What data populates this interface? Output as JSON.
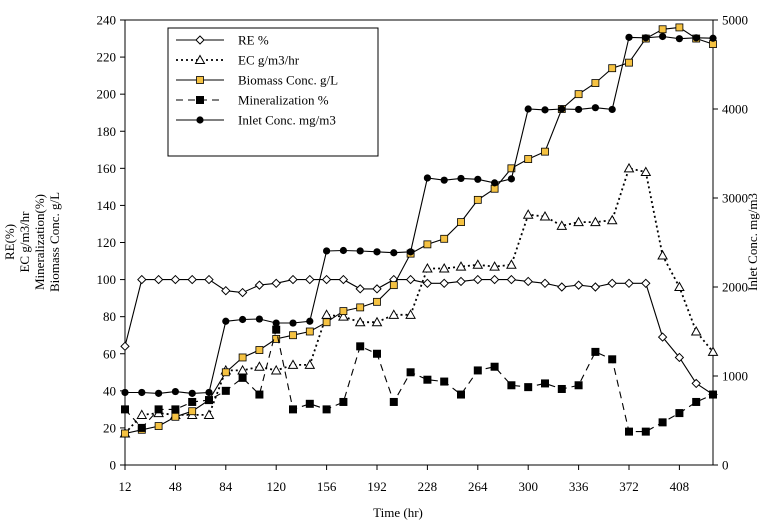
{
  "chart_data": {
    "type": "line",
    "title": "",
    "xlabel": "Time  (hr)",
    "ylabel_left": [
      "RE(%)",
      "EC g/m3/hr",
      "Mineralization(%)",
      "Biomass Conc. g/L"
    ],
    "ylabel_right": "Inlet Conc. mg/m3",
    "xlim": [
      12,
      432
    ],
    "ylim_left": [
      0,
      240
    ],
    "ylim_right": [
      0,
      5000
    ],
    "x_ticks": [
      "12",
      "48",
      "84",
      "120",
      "156",
      "192",
      "228",
      "264",
      "300",
      "336",
      "372",
      "408"
    ],
    "x_tick_values": [
      12,
      48,
      84,
      120,
      156,
      192,
      228,
      264,
      300,
      336,
      372,
      408
    ],
    "y_left_ticks": [
      "0",
      "20",
      "40",
      "60",
      "80",
      "100",
      "120",
      "140",
      "160",
      "180",
      "200",
      "220",
      "240"
    ],
    "y_left_tick_values": [
      0,
      20,
      40,
      60,
      80,
      100,
      120,
      140,
      160,
      180,
      200,
      220,
      240
    ],
    "y_right_ticks": [
      "0",
      "1000",
      "2000",
      "3000",
      "4000",
      "5000"
    ],
    "y_right_tick_values": [
      0,
      1000,
      2000,
      3000,
      4000,
      5000
    ],
    "grid": false,
    "legend_position": "top-left",
    "series": [
      {
        "name": "RE %",
        "axis": "left",
        "color": "#000000",
        "line_style": "solid",
        "marker": "diamond-open",
        "x": [
          12,
          24,
          36,
          48,
          60,
          72,
          84,
          96,
          108,
          120,
          132,
          144,
          156,
          168,
          180,
          192,
          204,
          216,
          228,
          240,
          252,
          264,
          276,
          288,
          300,
          312,
          324,
          336,
          348,
          360,
          372,
          384,
          396,
          408,
          420,
          432
        ],
        "y": [
          64,
          100,
          100,
          100,
          100,
          100,
          94,
          93,
          97,
          98,
          100,
          100,
          100,
          100,
          95,
          95,
          100,
          100,
          98,
          98,
          99,
          100,
          100,
          100,
          99,
          98,
          96,
          97,
          96,
          98,
          98,
          98,
          69,
          58,
          44,
          38
        ]
      },
      {
        "name": "EC g/m3/hr",
        "axis": "left",
        "color": "#000000",
        "line_style": "dotted",
        "marker": "triangle-open",
        "x": [
          12,
          24,
          36,
          48,
          60,
          72,
          84,
          96,
          108,
          120,
          132,
          144,
          156,
          168,
          180,
          192,
          204,
          216,
          228,
          240,
          252,
          264,
          276,
          288,
          300,
          312,
          324,
          336,
          348,
          360,
          372,
          384,
          396,
          408,
          420,
          432
        ],
        "y": [
          17,
          27,
          28,
          27,
          27,
          27,
          51,
          51,
          53,
          51,
          54,
          54,
          81,
          80,
          77,
          77,
          81,
          81,
          106,
          106,
          107,
          108,
          107,
          108,
          135,
          134,
          129,
          131,
          131,
          132,
          160,
          158,
          113,
          96,
          72,
          61
        ]
      },
      {
        "name": "Biomass Conc. g/L",
        "axis": "left",
        "color": "#000000",
        "fill": "#f5c242",
        "line_style": "solid",
        "marker": "square-yellow",
        "x": [
          12,
          24,
          36,
          48,
          60,
          72,
          84,
          96,
          108,
          120,
          132,
          144,
          156,
          168,
          180,
          192,
          204,
          216,
          228,
          240,
          252,
          264,
          276,
          288,
          300,
          312,
          324,
          336,
          348,
          360,
          372,
          384,
          396,
          408,
          420,
          432
        ],
        "y": [
          17,
          19,
          21,
          26,
          29,
          35,
          50,
          58,
          62,
          68,
          70,
          72,
          77,
          83,
          85,
          88,
          97,
          114,
          119,
          122,
          131,
          143,
          149,
          160,
          165,
          169,
          192,
          200,
          206,
          214,
          217,
          230,
          235,
          236,
          230,
          227
        ]
      },
      {
        "name": "Mineralization %",
        "axis": "left",
        "color": "#000000",
        "line_style": "dashed",
        "marker": "square-filled",
        "x": [
          12,
          24,
          36,
          48,
          60,
          72,
          84,
          96,
          108,
          120,
          132,
          144,
          156,
          168,
          180,
          192,
          204,
          216,
          228,
          240,
          252,
          264,
          276,
          288,
          300,
          312,
          324,
          336,
          348,
          360,
          372,
          384,
          396,
          408,
          420,
          432
        ],
        "y": [
          30,
          20,
          30,
          30,
          34,
          35,
          40,
          47,
          38,
          73,
          30,
          33,
          30,
          34,
          64,
          60,
          34,
          50,
          46,
          45,
          38,
          51,
          53,
          43,
          42,
          44,
          41,
          43,
          61,
          57,
          18,
          18,
          23,
          28,
          34,
          38
        ]
      },
      {
        "name": "Inlet Conc.  mg/m3",
        "axis": "right",
        "color": "#000000",
        "line_style": "solid",
        "marker": "circle-filled",
        "x": [
          12,
          24,
          36,
          48,
          60,
          72,
          84,
          96,
          108,
          120,
          132,
          144,
          156,
          168,
          180,
          192,
          204,
          216,
          228,
          240,
          252,
          264,
          276,
          288,
          300,
          312,
          324,
          336,
          348,
          360,
          372,
          384,
          396,
          408,
          420,
          432
        ],
        "y": [
          815,
          815,
          805,
          825,
          805,
          815,
          1615,
          1635,
          1640,
          1595,
          1595,
          1615,
          2405,
          2410,
          2405,
          2395,
          2385,
          2395,
          3225,
          3200,
          3220,
          3210,
          3170,
          3215,
          4000,
          3990,
          4000,
          3995,
          4015,
          3995,
          4805,
          4800,
          4815,
          4790,
          4800,
          4795
        ]
      }
    ]
  }
}
